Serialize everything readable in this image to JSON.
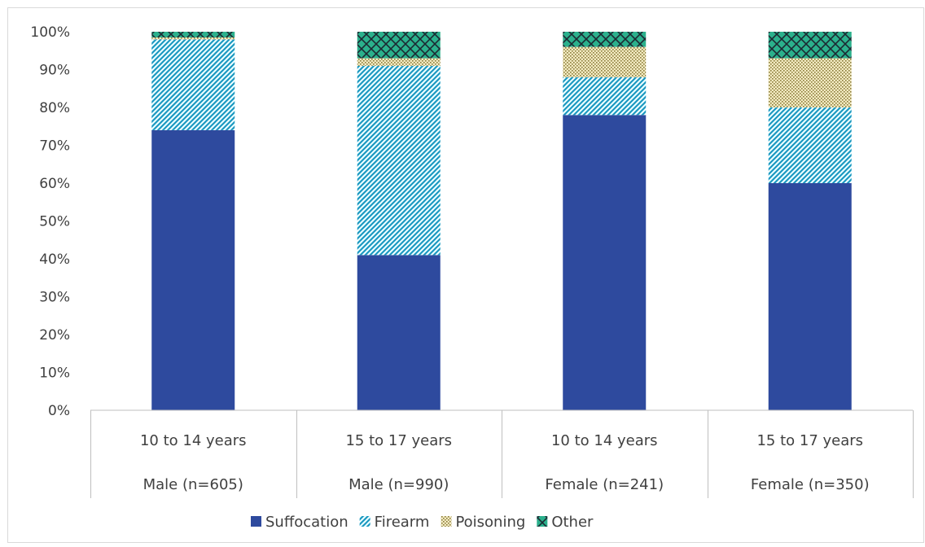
{
  "chart_data": {
    "type": "bar",
    "stacked": true,
    "percent": true,
    "categories": [
      [
        "10 to 14 years",
        "Male (n=605)"
      ],
      [
        "15 to 17 years",
        "Male (n=990)"
      ],
      [
        "10 to 14 years",
        "Female (n=241)"
      ],
      [
        "15 to 17 years",
        "Female (n=350)"
      ]
    ],
    "series": [
      {
        "name": "Suffocation",
        "values": [
          74,
          41,
          78,
          60
        ],
        "color": "#2e4a9e",
        "pattern": "solid"
      },
      {
        "name": "Firearm",
        "values": [
          24,
          50,
          10,
          20
        ],
        "color": "#29b5d6",
        "pattern": "diagonal-hatch"
      },
      {
        "name": "Poisoning",
        "values": [
          0.5,
          2,
          8,
          13
        ],
        "color": "#c9bd6a",
        "pattern": "dotted"
      },
      {
        "name": "Other",
        "values": [
          1.5,
          7,
          4,
          7
        ],
        "color": "#2bb08c",
        "pattern": "crosshatch"
      }
    ],
    "ylim": [
      0,
      100
    ],
    "y_ticks": [
      "0%",
      "10%",
      "20%",
      "30%",
      "40%",
      "50%",
      "60%",
      "70%",
      "80%",
      "90%",
      "100%"
    ],
    "grid": false,
    "legend_position": "bottom"
  }
}
